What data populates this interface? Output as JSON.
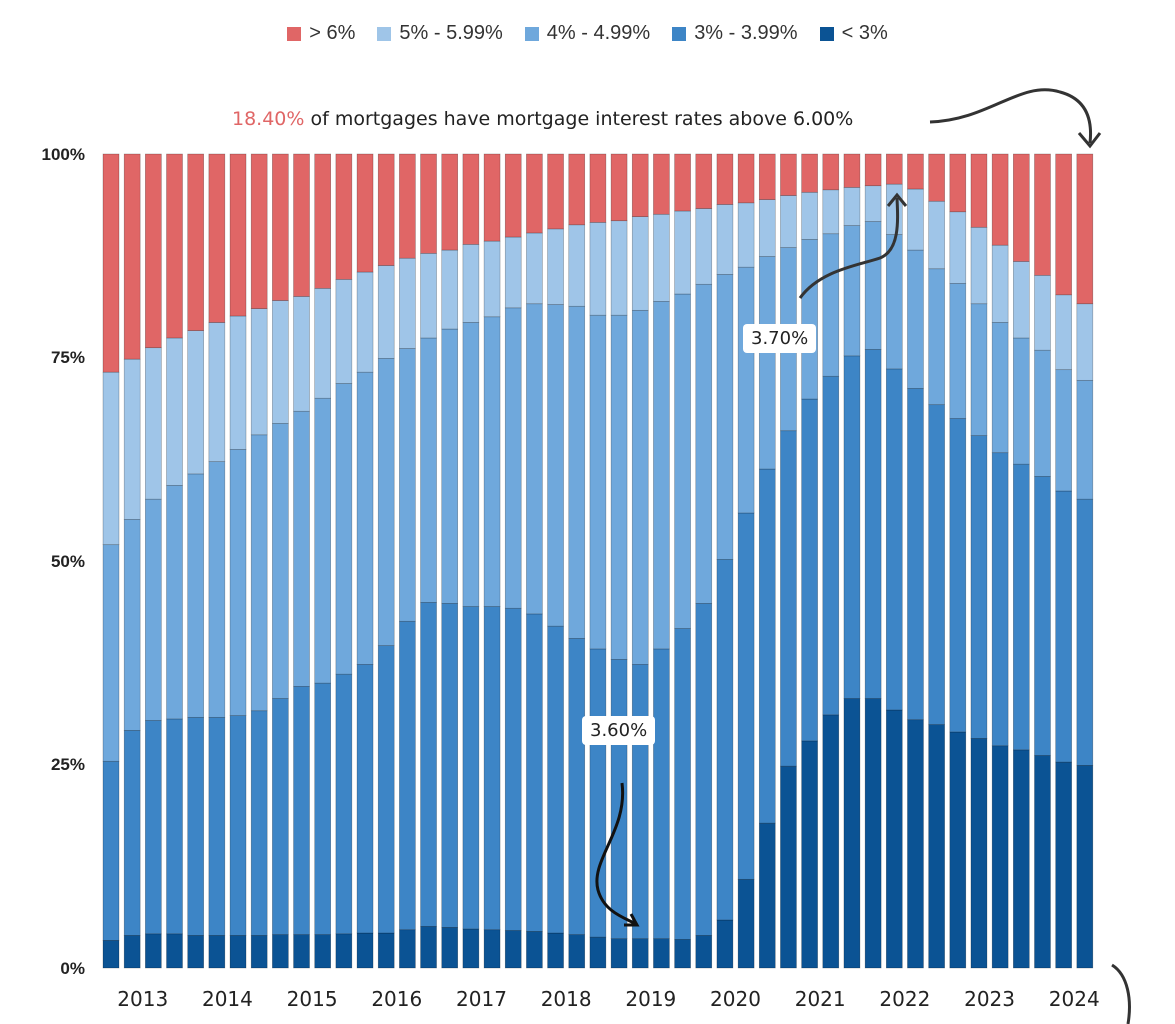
{
  "chart_data": {
    "type": "bar",
    "stacked": true,
    "title": "",
    "xlabel": "",
    "ylabel": "",
    "ylim": [
      0,
      100
    ],
    "y_ticks": [
      "0%",
      "25%",
      "50%",
      "75%",
      "100%"
    ],
    "x_ticks": [
      "2013",
      "2014",
      "2015",
      "2016",
      "2017",
      "2018",
      "2019",
      "2020",
      "2021",
      "2022",
      "2023",
      "2024"
    ],
    "legend_position": "top",
    "categories": [
      "2013 Q1",
      "2013 Q2",
      "2013 Q3",
      "2013 Q4",
      "2014 Q1",
      "2014 Q2",
      "2014 Q3",
      "2014 Q4",
      "2015 Q1",
      "2015 Q2",
      "2015 Q3",
      "2015 Q4",
      "2016 Q1",
      "2016 Q2",
      "2016 Q3",
      "2016 Q4",
      "2017 Q1",
      "2017 Q2",
      "2017 Q3",
      "2017 Q4",
      "2018 Q1",
      "2018 Q2",
      "2018 Q3",
      "2018 Q4",
      "2019 Q1",
      "2019 Q2",
      "2019 Q3",
      "2019 Q4",
      "2020 Q1",
      "2020 Q2",
      "2020 Q3",
      "2020 Q4",
      "2021 Q1",
      "2021 Q2",
      "2021 Q3",
      "2021 Q4",
      "2022 Q1",
      "2022 Q2",
      "2022 Q3",
      "2022 Q4",
      "2023 Q1",
      "2023 Q2",
      "2023 Q3",
      "2023 Q4",
      "2024 Q1",
      "2024 Q2",
      "2024 Q3"
    ],
    "series": [
      {
        "name": "< 3%",
        "color": "#0b5394",
        "values": [
          3.4,
          4.0,
          4.2,
          4.2,
          4.0,
          4.0,
          4.0,
          4.0,
          4.1,
          4.1,
          4.1,
          4.2,
          4.3,
          4.3,
          4.7,
          5.1,
          5.0,
          4.8,
          4.7,
          4.6,
          4.5,
          4.3,
          4.1,
          3.8,
          3.6,
          3.6,
          3.6,
          3.5,
          4.0,
          5.9,
          10.9,
          17.8,
          24.8,
          27.9,
          31.1,
          33.1,
          33.1,
          31.7,
          30.5,
          29.9,
          29.0,
          28.2,
          27.3,
          26.8,
          26.1,
          25.3,
          24.9
        ]
      },
      {
        "name": "3% - 3.99%",
        "color": "#3d85c6",
        "values": [
          22.0,
          25.2,
          26.2,
          26.4,
          26.8,
          26.8,
          27.0,
          27.6,
          29.0,
          30.5,
          30.9,
          31.9,
          33.0,
          35.3,
          37.9,
          39.8,
          39.8,
          39.6,
          39.7,
          39.6,
          39.0,
          37.7,
          36.4,
          35.4,
          34.3,
          33.7,
          35.6,
          38.2,
          40.8,
          44.3,
          45.0,
          43.5,
          41.2,
          42.0,
          41.6,
          42.1,
          42.9,
          41.9,
          40.7,
          39.3,
          38.5,
          37.2,
          36.0,
          35.1,
          34.3,
          33.3,
          32.7
        ]
      },
      {
        "name": "4% - 4.99%",
        "color": "#6fa8dc",
        "values": [
          26.6,
          25.9,
          27.2,
          28.7,
          29.9,
          31.4,
          32.7,
          33.9,
          33.8,
          33.8,
          35.0,
          35.7,
          35.9,
          35.3,
          33.5,
          32.5,
          33.7,
          34.9,
          35.6,
          36.9,
          38.1,
          39.5,
          40.8,
          41.0,
          42.3,
          43.5,
          42.7,
          41.1,
          39.2,
          35.0,
          30.2,
          26.1,
          22.5,
          19.6,
          17.5,
          16.0,
          15.7,
          16.5,
          17.0,
          16.7,
          16.6,
          16.2,
          16.0,
          15.5,
          15.5,
          14.9,
          14.6
        ]
      },
      {
        "name": "5% - 5.99%",
        "color": "#9fc5e8",
        "values": [
          21.2,
          19.7,
          18.6,
          18.1,
          17.6,
          17.1,
          16.4,
          15.5,
          15.1,
          14.1,
          13.5,
          12.8,
          12.3,
          11.4,
          11.1,
          10.4,
          9.7,
          9.6,
          9.3,
          8.7,
          8.7,
          9.3,
          10.0,
          11.4,
          11.6,
          11.5,
          10.7,
          10.2,
          9.3,
          8.6,
          7.9,
          7.0,
          6.4,
          5.8,
          5.4,
          4.7,
          4.4,
          6.2,
          7.5,
          8.3,
          8.8,
          9.4,
          9.5,
          9.4,
          9.2,
          9.2,
          9.4
        ]
      },
      {
        "name": "> 6%",
        "color": "#e06666",
        "values": [
          26.8,
          25.2,
          23.8,
          22.6,
          21.7,
          20.7,
          19.9,
          19.0,
          18.0,
          17.5,
          16.5,
          15.4,
          14.5,
          13.7,
          12.8,
          12.2,
          11.8,
          11.1,
          10.7,
          10.2,
          9.7,
          9.2,
          8.7,
          8.4,
          8.2,
          7.7,
          7.4,
          7.0,
          6.7,
          6.2,
          6.0,
          5.6,
          5.1,
          4.7,
          4.4,
          4.1,
          3.9,
          3.7,
          4.3,
          5.8,
          7.1,
          9.0,
          11.2,
          13.2,
          14.9,
          17.3,
          18.4
        ]
      }
    ],
    "annotations": {
      "headline_value": "18.40%",
      "headline_text": " of mortgages have mortgage interest rates above 6.00%",
      "label_high": "3.70%",
      "label_low": "3.60%"
    }
  }
}
